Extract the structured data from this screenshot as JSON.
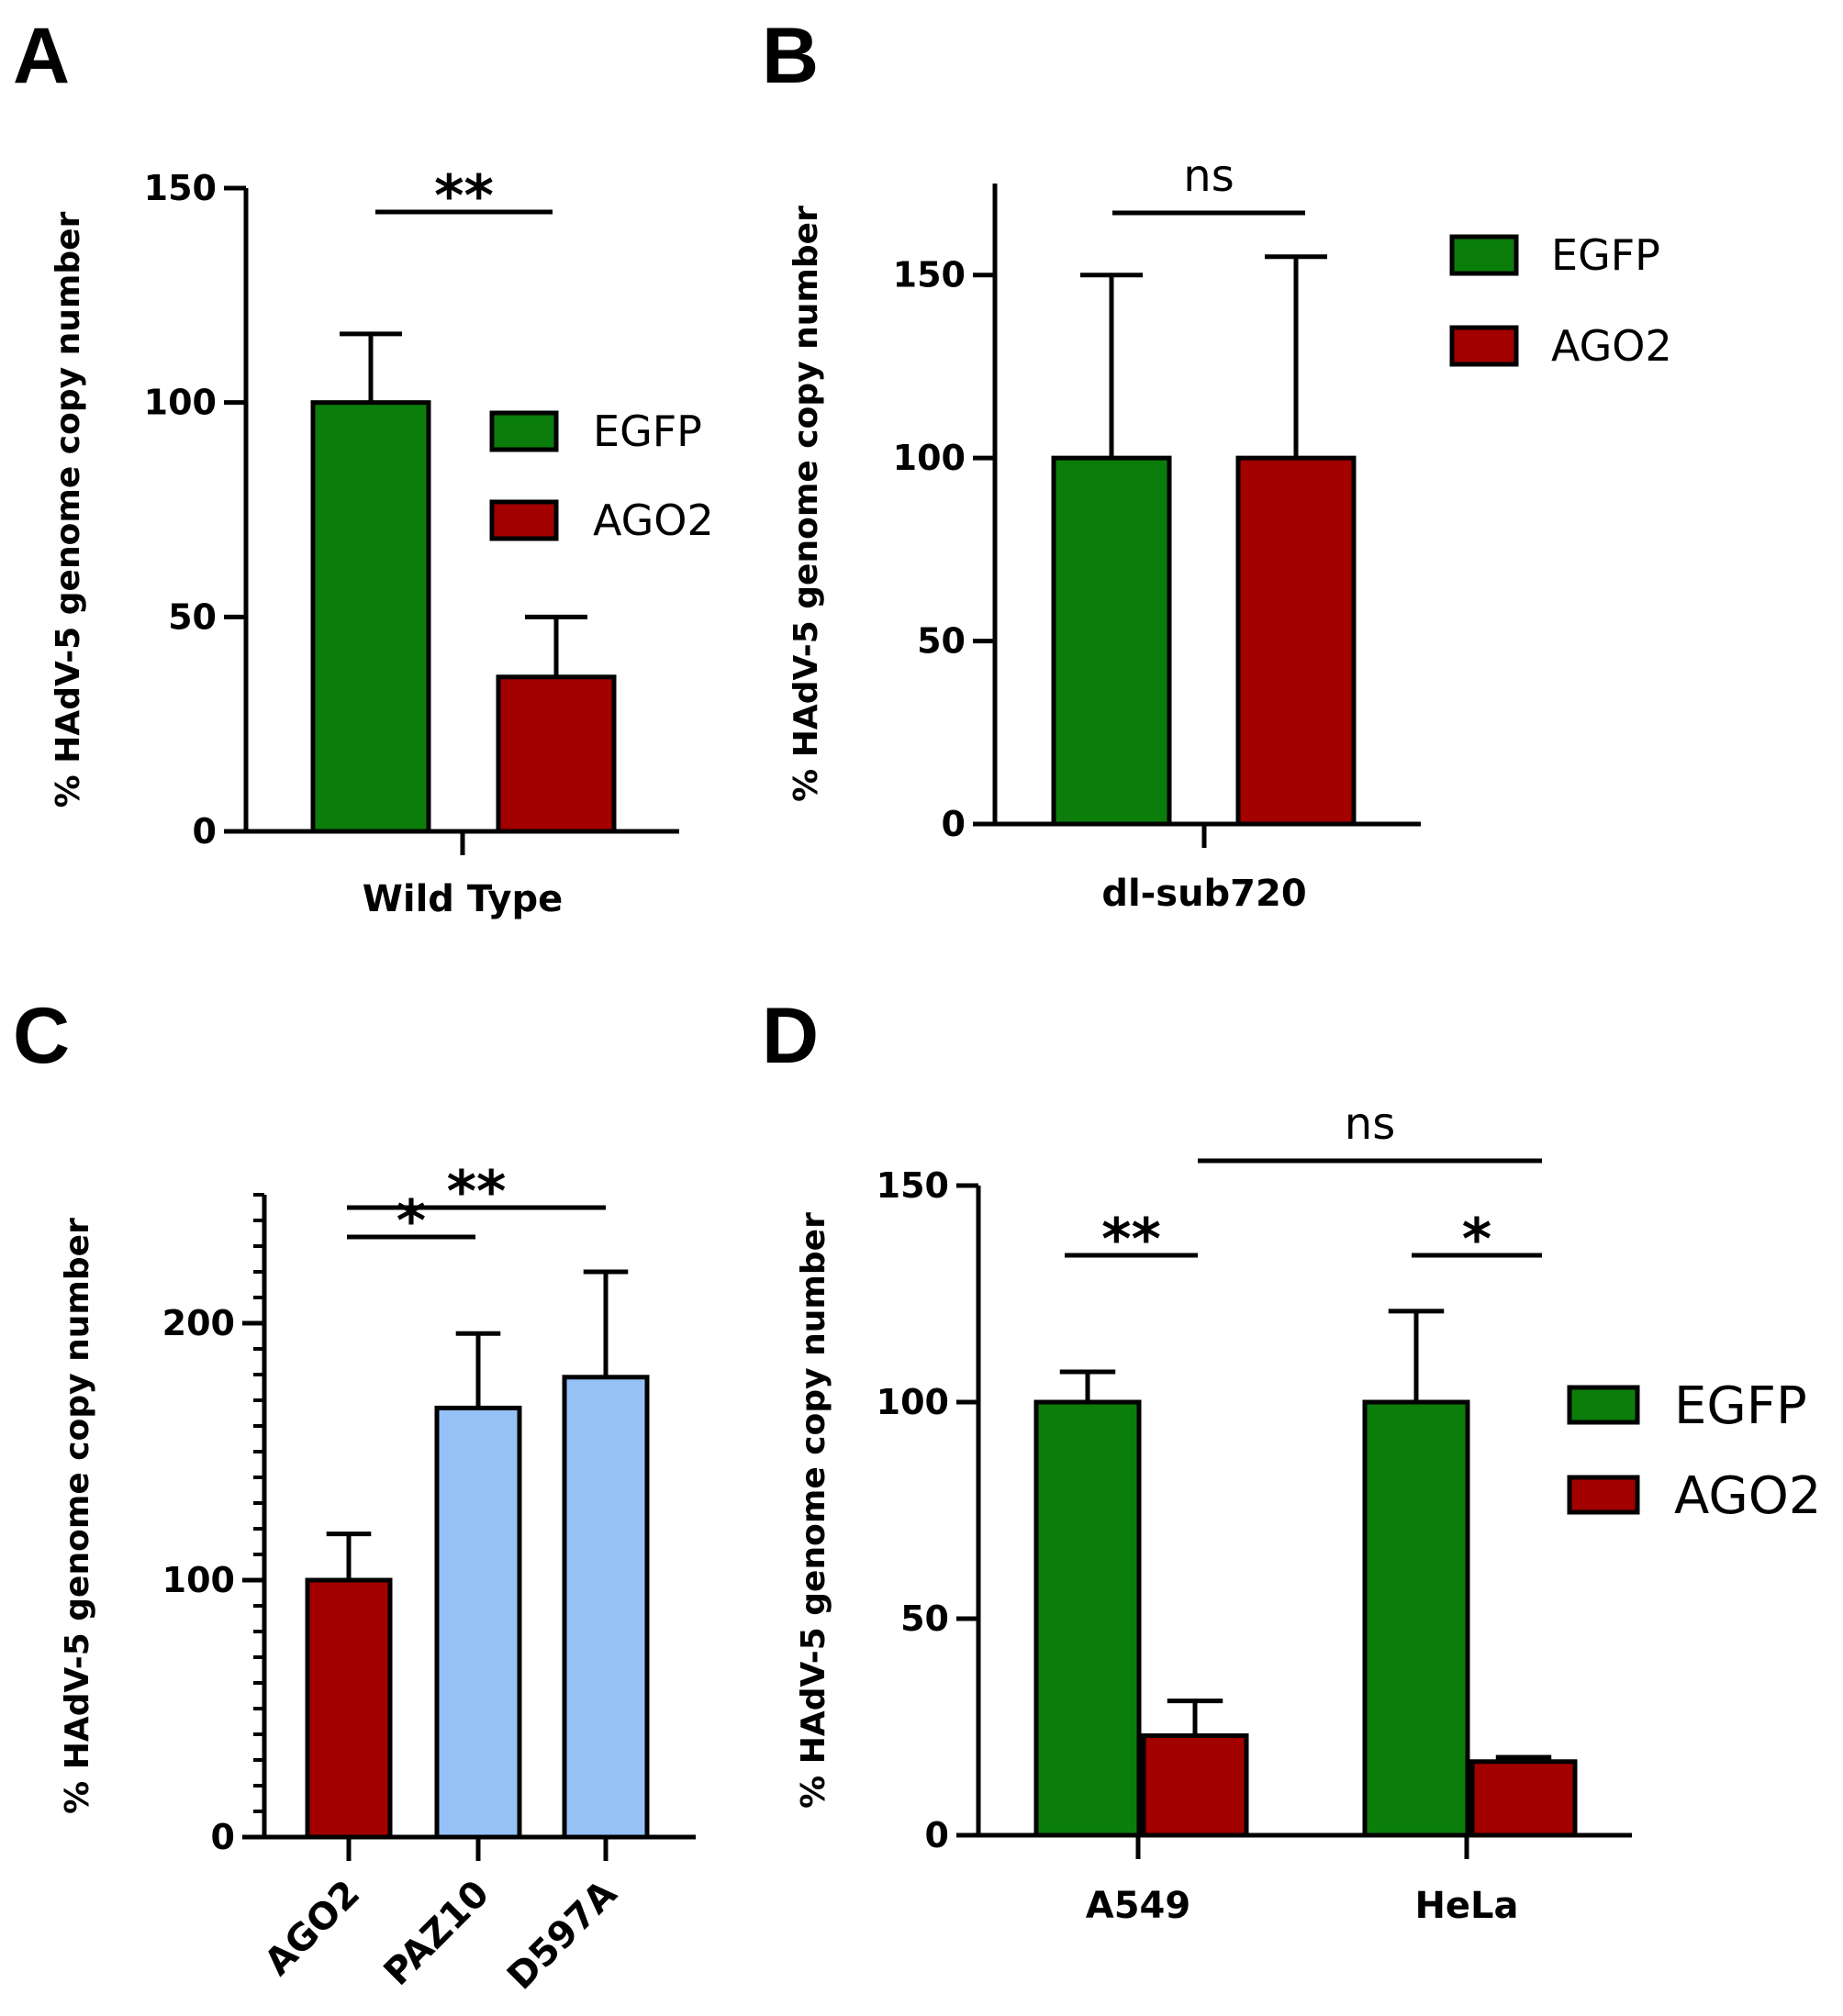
{
  "colors": {
    "EGFP": "#0b7d0b",
    "AGO2": "#a30000",
    "mutant": "#96c1f6"
  },
  "chart_data": [
    {
      "panel": "A",
      "type": "bar",
      "ylabel": "% HAdV-5 genome copy number",
      "xlabel": "Wild Type",
      "ylim": [
        0,
        150
      ],
      "yticks": [
        "0",
        "50",
        "100",
        "150"
      ],
      "categories": [
        "Wild Type"
      ],
      "series": [
        {
          "name": "EGFP",
          "color": "#0b7d0b",
          "values": [
            100
          ],
          "errors": [
            16
          ]
        },
        {
          "name": "AGO2",
          "color": "#a30000",
          "values": [
            36
          ],
          "errors": [
            14
          ]
        }
      ],
      "legend": "right",
      "significance": [
        {
          "label": "**",
          "from": "EGFP",
          "to": "AGO2"
        }
      ]
    },
    {
      "panel": "B",
      "type": "bar",
      "ylabel": "% HAdV-5 genome copy number",
      "xlabel": "dl-sub720",
      "ylim": [
        0,
        175
      ],
      "yticks": [
        "0",
        "50",
        "100",
        "150"
      ],
      "categories": [
        "dl-sub720"
      ],
      "series": [
        {
          "name": "EGFP",
          "color": "#0b7d0b",
          "values": [
            100
          ],
          "errors": [
            50
          ]
        },
        {
          "name": "AGO2",
          "color": "#a30000",
          "values": [
            100
          ],
          "errors": [
            55
          ]
        }
      ],
      "legend": "top-right",
      "significance": [
        {
          "label": "ns",
          "from": "EGFP",
          "to": "AGO2"
        }
      ]
    },
    {
      "panel": "C",
      "type": "bar",
      "ylabel": "% HAdV-5 genome copy number",
      "ylim": [
        0,
        250
      ],
      "yticks": [
        "0",
        "100",
        "200"
      ],
      "categories": [
        "AGO2",
        "PAZ10",
        "D597A"
      ],
      "colors": [
        "#a30000",
        "#96c1f6",
        "#96c1f6"
      ],
      "values": [
        100,
        167,
        179
      ],
      "errors": [
        18,
        29,
        41
      ],
      "significance": [
        {
          "label": "*",
          "from": "AGO2",
          "to": "PAZ10"
        },
        {
          "label": "**",
          "from": "AGO2",
          "to": "D597A"
        }
      ]
    },
    {
      "panel": "D",
      "type": "bar",
      "ylabel": "% HAdV-5 genome copy number",
      "ylim": [
        0,
        150
      ],
      "yticks": [
        "0",
        "50",
        "100",
        "150"
      ],
      "categories": [
        "A549",
        "HeLa"
      ],
      "series": [
        {
          "name": "EGFP",
          "color": "#0b7d0b",
          "values": [
            100,
            100
          ],
          "errors": [
            7,
            21
          ]
        },
        {
          "name": "AGO2",
          "color": "#a30000",
          "values": [
            23,
            17
          ],
          "errors": [
            8,
            1
          ]
        }
      ],
      "legend": "right",
      "significance": [
        {
          "label": "**",
          "from": "A549 EGFP",
          "to": "A549 AGO2"
        },
        {
          "label": "*",
          "from": "HeLa EGFP",
          "to": "HeLa AGO2"
        },
        {
          "label": "ns",
          "from": "A549 AGO2",
          "to": "HeLa AGO2"
        }
      ]
    }
  ]
}
